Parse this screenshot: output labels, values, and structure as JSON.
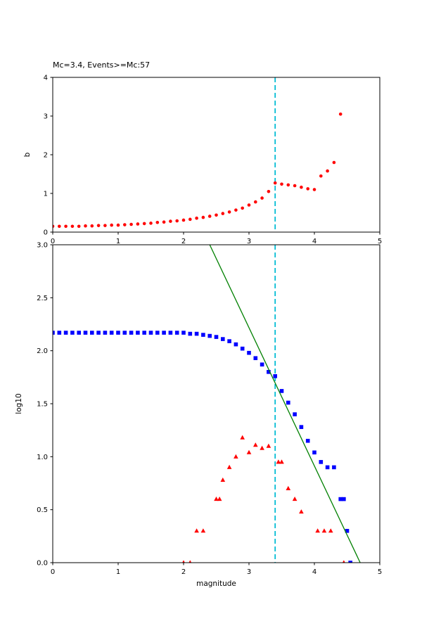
{
  "chart_data": [
    {
      "type": "scatter",
      "title": "Mc=3.4, Events>=Mc:57",
      "xlabel": "",
      "ylabel": "b",
      "xlim": [
        0,
        5
      ],
      "ylim": [
        0,
        4
      ],
      "xticks": [
        0,
        1,
        2,
        3,
        4,
        5
      ],
      "xtick_labels": [
        "0",
        "1",
        "2",
        "3",
        "4",
        "5"
      ],
      "yticks": [
        0,
        1,
        2,
        3,
        4
      ],
      "ytick_labels": [
        "0",
        "1",
        "2",
        "3",
        "4"
      ],
      "grid": false,
      "vline": {
        "x": 3.4,
        "color": "#00bcd4",
        "style": "dashed",
        "name": "mc-cutoff-line"
      },
      "series": [
        {
          "name": "b-value-estimates",
          "color": "#ff0000",
          "marker": "circle",
          "x": [
            0,
            0.1,
            0.2,
            0.3,
            0.4,
            0.5,
            0.6,
            0.7,
            0.8,
            0.9,
            1,
            1.1,
            1.2,
            1.3,
            1.4,
            1.5,
            1.6,
            1.7,
            1.8,
            1.9,
            2,
            2.1,
            2.2,
            2.3,
            2.4,
            2.5,
            2.6,
            2.7,
            2.8,
            2.9,
            3,
            3.1,
            3.2,
            3.3,
            3.4,
            3.5,
            3.6,
            3.7,
            3.8,
            3.9,
            4,
            4.1,
            4.2,
            4.3,
            4.4
          ],
          "y": [
            0.15,
            0.15,
            0.15,
            0.15,
            0.15,
            0.16,
            0.16,
            0.17,
            0.17,
            0.18,
            0.18,
            0.19,
            0.2,
            0.21,
            0.22,
            0.23,
            0.25,
            0.26,
            0.28,
            0.29,
            0.31,
            0.33,
            0.36,
            0.38,
            0.41,
            0.44,
            0.48,
            0.52,
            0.57,
            0.62,
            0.7,
            0.78,
            0.88,
            1.05,
            1.27,
            1.24,
            1.22,
            1.2,
            1.16,
            1.12,
            1.1,
            1.45,
            1.58,
            1.8,
            3.05
          ]
        }
      ]
    },
    {
      "type": "scatter",
      "title": "",
      "xlabel": "magnitude",
      "ylabel": "log10",
      "xlim": [
        0,
        5
      ],
      "ylim": [
        0,
        3
      ],
      "xticks": [
        0,
        1,
        2,
        3,
        4,
        5
      ],
      "xtick_labels": [
        "0",
        "1",
        "2",
        "3",
        "4",
        "5"
      ],
      "yticks": [
        0,
        0.5,
        1,
        1.5,
        2,
        2.5,
        3
      ],
      "ytick_labels": [
        "0.0",
        "0.5",
        "1.0",
        "1.5",
        "2.0",
        "2.5",
        "3.0"
      ],
      "grid": false,
      "vline": {
        "x": 3.4,
        "color": "#00bcd4",
        "style": "dashed",
        "name": "mc-cutoff-line"
      },
      "series": [
        {
          "name": "cumulative-event-counts",
          "color": "#0000ff",
          "marker": "square",
          "x": [
            0,
            0.1,
            0.2,
            0.3,
            0.4,
            0.5,
            0.6,
            0.7,
            0.8,
            0.9,
            1,
            1.1,
            1.2,
            1.3,
            1.4,
            1.5,
            1.6,
            1.7,
            1.8,
            1.9,
            2,
            2.1,
            2.2,
            2.3,
            2.4,
            2.5,
            2.6,
            2.7,
            2.8,
            2.9,
            3,
            3.1,
            3.2,
            3.3,
            3.4,
            3.5,
            3.6,
            3.7,
            3.8,
            3.9,
            4,
            4.1,
            4.2,
            4.3,
            4.4,
            4.45,
            4.5,
            4.55
          ],
          "y": [
            2.17,
            2.17,
            2.17,
            2.17,
            2.17,
            2.17,
            2.17,
            2.17,
            2.17,
            2.17,
            2.17,
            2.17,
            2.17,
            2.17,
            2.17,
            2.17,
            2.17,
            2.17,
            2.17,
            2.17,
            2.17,
            2.16,
            2.16,
            2.15,
            2.14,
            2.13,
            2.11,
            2.09,
            2.06,
            2.02,
            1.98,
            1.93,
            1.87,
            1.8,
            1.76,
            1.62,
            1.51,
            1.4,
            1.28,
            1.15,
            1.04,
            0.95,
            0.9,
            0.9,
            0.6,
            0.6,
            0.3,
            0
          ]
        },
        {
          "name": "noncumulative-event-counts",
          "color": "#ff0000",
          "marker": "triangle",
          "x": [
            2,
            2.1,
            2.2,
            2.3,
            2.5,
            2.55,
            2.6,
            2.7,
            2.8,
            2.9,
            3,
            3.1,
            3.2,
            3.3,
            3.45,
            3.5,
            3.6,
            3.7,
            3.8,
            4.05,
            4.15,
            4.25,
            4.45
          ],
          "y": [
            0,
            0,
            0.3,
            0.3,
            0.6,
            0.6,
            0.78,
            0.9,
            1,
            1.18,
            1.04,
            1.11,
            1.08,
            1.1,
            0.95,
            0.95,
            0.7,
            0.6,
            0.48,
            0.3,
            0.3,
            0.3,
            0
          ]
        },
        {
          "name": "gutenberg-richter-fit-line",
          "color": "#008000",
          "marker": "line",
          "x": [
            2.4,
            4.7
          ],
          "y": [
            3,
            0
          ]
        }
      ]
    }
  ]
}
